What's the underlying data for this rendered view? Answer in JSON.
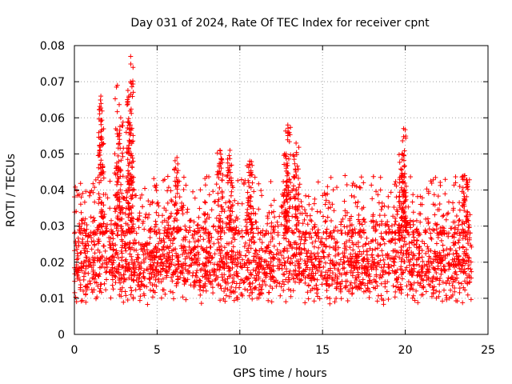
{
  "chart_data": {
    "type": "scatter",
    "title": "Day 031 of 2024, Rate Of TEC Index for receiver cpnt",
    "xlabel": "GPS time / hours",
    "ylabel": "ROTI / TECUs",
    "xlim": [
      0,
      25
    ],
    "ylim": [
      0,
      0.08
    ],
    "x_ticks": [
      "0",
      "5",
      "10",
      "15",
      "20",
      "25"
    ],
    "y_ticks": [
      "0",
      "0.01",
      "0.02",
      "0.03",
      "0.04",
      "0.05",
      "0.06",
      "0.07",
      "0.08"
    ],
    "grid": true,
    "marker": "+",
    "marker_color": "#ff0000",
    "series": [
      {
        "name": "ROTI",
        "x_range": [
          0,
          24
        ],
        "baseline_band": [
          0.008,
          0.03
        ],
        "peaks": [
          {
            "x": 1.6,
            "y": 0.066
          },
          {
            "x": 1.6,
            "y": 0.059
          },
          {
            "x": 2.6,
            "y": 0.069
          },
          {
            "x": 2.8,
            "y": 0.06
          },
          {
            "x": 3.4,
            "y": 0.077
          },
          {
            "x": 3.3,
            "y": 0.066
          },
          {
            "x": 3.4,
            "y": 0.057
          },
          {
            "x": 6.2,
            "y": 0.049
          },
          {
            "x": 8.8,
            "y": 0.051
          },
          {
            "x": 9.4,
            "y": 0.051
          },
          {
            "x": 10.6,
            "y": 0.048
          },
          {
            "x": 12.9,
            "y": 0.058
          },
          {
            "x": 12.8,
            "y": 0.05
          },
          {
            "x": 13.4,
            "y": 0.053
          },
          {
            "x": 19.9,
            "y": 0.057
          },
          {
            "x": 19.8,
            "y": 0.05
          },
          {
            "x": 23.6,
            "y": 0.044
          }
        ]
      }
    ]
  }
}
